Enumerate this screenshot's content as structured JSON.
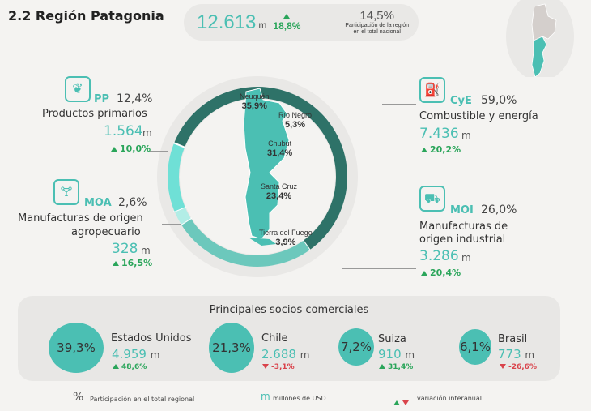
{
  "title": "2.2 Región Patagonia",
  "summary": {
    "total": "12.613",
    "unit": "m",
    "variation": "18,8%",
    "share": "14,5%",
    "share_label_1": "Participación de la región",
    "share_label_2": "en el total nacional"
  },
  "colors": {
    "cye": "#2e7268",
    "moi": "#6cc8bc",
    "moa": "#b2ede6",
    "pp": "#6fe0d6",
    "accent": "#4bbfb3",
    "up": "#2aa55a",
    "down": "#d9434b"
  },
  "sectors": [
    {
      "code": "PP",
      "icon": "wheat-icon",
      "share": "12,4%",
      "name": "Productos primarios",
      "value": "1.564",
      "unit": "m",
      "variation": "10,0%",
      "pct": 12.4
    },
    {
      "code": "MOA",
      "icon": "bottle-icon",
      "share": "2,6%",
      "name_1": "Manufacturas de origen",
      "name_2": "agropecuario",
      "value": "328",
      "unit": "m",
      "variation": "16,5%",
      "pct": 2.6
    },
    {
      "code": "CyE",
      "icon": "fuel-pump-icon",
      "share": "59,0%",
      "name": "Combustible y energía",
      "value": "7.436",
      "unit": "m",
      "variation": "20,2%",
      "pct": 59.0
    },
    {
      "code": "MOI",
      "icon": "truck-icon",
      "share": "26,0%",
      "name_1": "Manufacturas de",
      "name_2": "origen industrial",
      "value": "3.286",
      "unit": "m",
      "variation": "20,4%",
      "pct": 26.0
    }
  ],
  "provinces": [
    {
      "name": "Neuquén",
      "share": "35,9%"
    },
    {
      "name": "Río Negro",
      "share": "5,3%"
    },
    {
      "name": "Chubut",
      "share": "31,4%"
    },
    {
      "name": "Santa Cruz",
      "share": "23,4%"
    },
    {
      "name": "Tierra del Fuego",
      "share": "3,9%"
    }
  ],
  "partners": {
    "title": "Principales socios comerciales",
    "items": [
      {
        "share": "39,3%",
        "name": "Estados Unidos",
        "value": "4.959",
        "unit": "m",
        "variation": "48,6%",
        "dir": "up"
      },
      {
        "share": "21,3%",
        "name": "Chile",
        "value": "2.688",
        "unit": "m",
        "variation": "-3,1%",
        "dir": "down"
      },
      {
        "share": "7,2%",
        "name": "Suiza",
        "value": "910",
        "unit": "m",
        "variation": "31,4%",
        "dir": "up"
      },
      {
        "share": "6,1%",
        "name": "Brasil",
        "value": "773",
        "unit": "m",
        "variation": "-26,6%",
        "dir": "down"
      }
    ]
  },
  "legend": {
    "pct_symbol": "%",
    "pct_label": "Participación en el total regional",
    "m_symbol": "m",
    "m_label": "millones de USD",
    "var_label": "variación interanual"
  }
}
